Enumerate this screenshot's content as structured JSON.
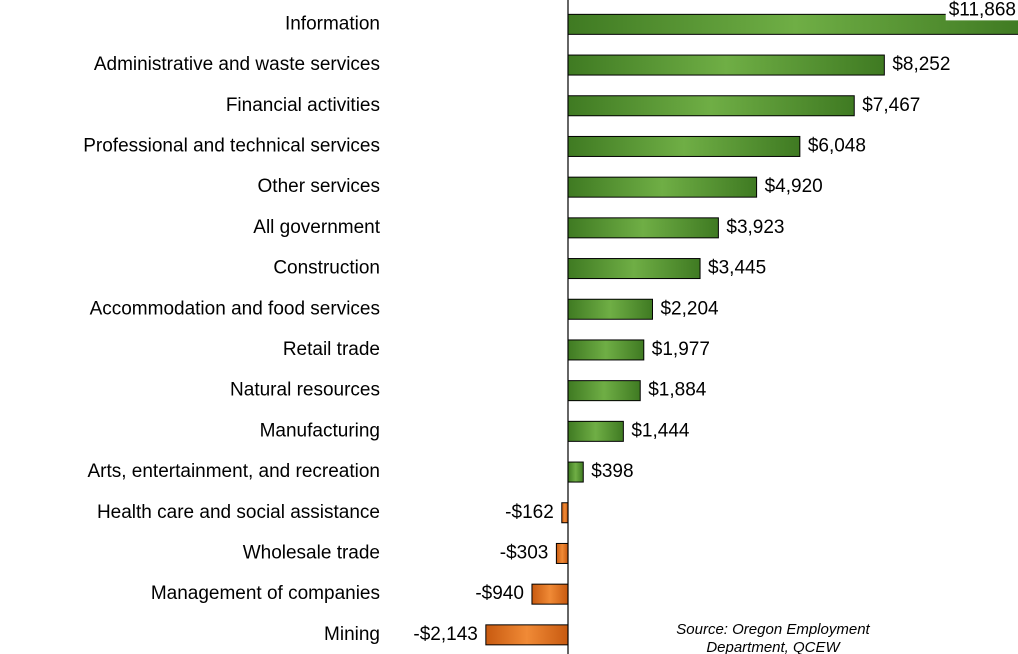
{
  "chart_data": {
    "type": "hbar",
    "categories": [
      "Information",
      "Administrative and waste services",
      "Financial activities",
      "Professional and technical services",
      "Other services",
      "All government",
      "Construction",
      "Accommodation and food services",
      "Retail trade",
      "Natural resources",
      "Manufacturing",
      "Arts, entertainment, and recreation",
      "Health care and social assistance",
      "Wholesale trade",
      "Management of companies",
      "Mining"
    ],
    "values": [
      11868,
      8252,
      7467,
      6048,
      4920,
      3923,
      3445,
      2204,
      1977,
      1884,
      1444,
      398,
      -162,
      -303,
      -940,
      -2143
    ],
    "value_labels": [
      "$11,868",
      "$8,252",
      "$7,467",
      "$6,048",
      "$4,920",
      "$3,923",
      "$3,445",
      "$2,204",
      "$1,977",
      "$1,884",
      "$1,444",
      "$398",
      "-$162",
      "-$303",
      "-$940",
      "-$2,143"
    ],
    "colors": {
      "positive": "#5a9a34",
      "negative": "#e8741e"
    },
    "xlim": [
      -3000,
      12000
    ],
    "annotation": [
      "Source: Oregon Employment",
      "Department, QCEW"
    ]
  }
}
